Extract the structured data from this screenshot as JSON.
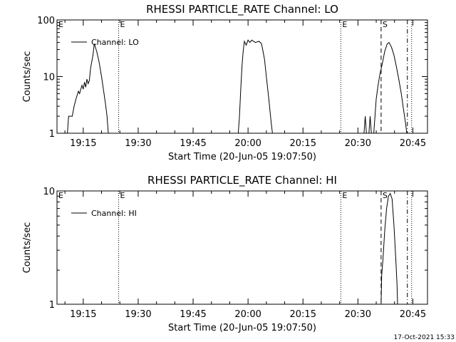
{
  "footer": {
    "date_stamp": "17-Oct-2021 15:33"
  },
  "chart_data": [
    {
      "type": "line",
      "title": "RHESSI PARTICLE_RATE Channel: LO",
      "xlabel": "Start Time (20-Jun-05 19:07:50)",
      "ylabel": "Counts/sec",
      "y_scale": "log",
      "ylim": [
        1,
        100
      ],
      "xlim": [
        "19:07:50",
        "20:49:00"
      ],
      "y_ticks": [
        {
          "label": "1",
          "value": 1
        },
        {
          "label": "10",
          "value": 10
        },
        {
          "label": "100",
          "value": 100
        }
      ],
      "x_ticks": [
        "19:15",
        "19:30",
        "19:45",
        "20:00",
        "20:15",
        "20:30",
        "20:45"
      ],
      "legend": {
        "label": "Channel: LO",
        "placement": "top-left"
      },
      "markers": [
        {
          "time": "19:24:40",
          "style": "dotted",
          "label": "E"
        },
        {
          "time": "20:25:20",
          "style": "dotted",
          "label": "E"
        },
        {
          "time": "20:36:20",
          "style": "dashed",
          "label": "S"
        },
        {
          "time": "20:43:30",
          "style": "dash-dot",
          "label": ""
        },
        {
          "time": "20:44:40",
          "style": "dotted",
          "label": ""
        }
      ],
      "series": [
        {
          "segments": [
            [
              {
                "t": "19:10:40",
                "v": 1
              },
              {
                "t": "19:11:00",
                "v": 2
              },
              {
                "t": "19:12:00",
                "v": 2
              },
              {
                "t": "19:12:30",
                "v": 3
              },
              {
                "t": "19:13:00",
                "v": 4
              },
              {
                "t": "19:13:40",
                "v": 5.5
              },
              {
                "t": "19:14:00",
                "v": 5
              },
              {
                "t": "19:14:20",
                "v": 6
              },
              {
                "t": "19:14:40",
                "v": 7
              },
              {
                "t": "19:15:00",
                "v": 6
              },
              {
                "t": "19:15:20",
                "v": 8
              },
              {
                "t": "19:15:40",
                "v": 6.5
              },
              {
                "t": "19:16:00",
                "v": 9
              },
              {
                "t": "19:16:20",
                "v": 7.5
              },
              {
                "t": "19:16:40",
                "v": 8.5
              },
              {
                "t": "19:17:00",
                "v": 14
              },
              {
                "t": "19:17:40",
                "v": 24
              },
              {
                "t": "19:18:00",
                "v": 38
              },
              {
                "t": "19:18:40",
                "v": 28
              },
              {
                "t": "19:19:20",
                "v": 18
              },
              {
                "t": "19:20:00",
                "v": 10
              },
              {
                "t": "19:20:40",
                "v": 5
              },
              {
                "t": "19:21:10",
                "v": 3
              },
              {
                "t": "19:21:30",
                "v": 2
              },
              {
                "t": "19:21:50",
                "v": 1
              }
            ],
            [
              {
                "t": "19:57:20",
                "v": 1
              },
              {
                "t": "19:57:40",
                "v": 2
              },
              {
                "t": "19:58:00",
                "v": 6
              },
              {
                "t": "19:58:20",
                "v": 15
              },
              {
                "t": "19:58:40",
                "v": 28
              },
              {
                "t": "19:59:00",
                "v": 42
              },
              {
                "t": "19:59:30",
                "v": 36
              },
              {
                "t": "20:00:00",
                "v": 44
              },
              {
                "t": "20:00:30",
                "v": 40
              },
              {
                "t": "20:01:00",
                "v": 44
              },
              {
                "t": "20:02:00",
                "v": 40
              },
              {
                "t": "20:03:00",
                "v": 42
              },
              {
                "t": "20:03:40",
                "v": 38
              },
              {
                "t": "20:04:00",
                "v": 30
              },
              {
                "t": "20:04:30",
                "v": 20
              },
              {
                "t": "20:05:00",
                "v": 10
              },
              {
                "t": "20:05:40",
                "v": 4
              },
              {
                "t": "20:06:20",
                "v": 1.5
              },
              {
                "t": "20:06:40",
                "v": 1
              }
            ],
            [
              {
                "t": "20:31:40",
                "v": 1
              },
              {
                "t": "20:32:00",
                "v": 2
              },
              {
                "t": "20:32:20",
                "v": 1
              },
              {
                "t": "20:33:00",
                "v": 1
              },
              {
                "t": "20:33:20",
                "v": 2
              },
              {
                "t": "20:33:40",
                "v": 1
              },
              {
                "t": "20:34:20",
                "v": 1
              },
              {
                "t": "20:34:40",
                "v": 2
              },
              {
                "t": "20:35:00",
                "v": 4
              },
              {
                "t": "20:35:30",
                "v": 7
              },
              {
                "t": "20:36:00",
                "v": 11
              },
              {
                "t": "20:36:40",
                "v": 17
              },
              {
                "t": "20:37:20",
                "v": 28
              },
              {
                "t": "20:38:00",
                "v": 38
              },
              {
                "t": "20:38:30",
                "v": 40
              },
              {
                "t": "20:39:10",
                "v": 33
              },
              {
                "t": "20:39:50",
                "v": 24
              },
              {
                "t": "20:40:30",
                "v": 15
              },
              {
                "t": "20:41:10",
                "v": 9
              },
              {
                "t": "20:41:50",
                "v": 5
              },
              {
                "t": "20:42:30",
                "v": 2.5
              },
              {
                "t": "20:43:00",
                "v": 1.5
              },
              {
                "t": "20:43:20",
                "v": 1
              }
            ]
          ]
        }
      ]
    },
    {
      "type": "line",
      "title": "RHESSI PARTICLE_RATE Channel: HI",
      "xlabel": "Start Time (20-Jun-05 19:07:50)",
      "ylabel": "Counts/sec",
      "y_scale": "log",
      "ylim": [
        1,
        10
      ],
      "xlim": [
        "19:07:50",
        "20:49:00"
      ],
      "y_ticks": [
        {
          "label": "1",
          "value": 1
        },
        {
          "label": "10",
          "value": 10
        }
      ],
      "x_ticks": [
        "19:15",
        "19:30",
        "19:45",
        "20:00",
        "20:15",
        "20:30",
        "20:45"
      ],
      "legend": {
        "label": "Channel: HI",
        "placement": "top-left"
      },
      "markers": [
        {
          "time": "19:24:40",
          "style": "dotted",
          "label": "E"
        },
        {
          "time": "20:25:20",
          "style": "dotted",
          "label": "E"
        },
        {
          "time": "20:36:20",
          "style": "dashed",
          "label": "S"
        },
        {
          "time": "20:43:30",
          "style": "dash-dot",
          "label": ""
        },
        {
          "time": "20:44:40",
          "style": "dotted",
          "label": ""
        }
      ],
      "series": [
        {
          "segments": [
            [
              {
                "t": "20:36:20",
                "v": 1
              },
              {
                "t": "20:36:30",
                "v": 1.8
              },
              {
                "t": "20:36:50",
                "v": 2.5
              },
              {
                "t": "20:37:20",
                "v": 4.5
              },
              {
                "t": "20:37:50",
                "v": 7
              },
              {
                "t": "20:38:20",
                "v": 9
              },
              {
                "t": "20:38:50",
                "v": 9.5
              },
              {
                "t": "20:39:20",
                "v": 8.5
              },
              {
                "t": "20:39:50",
                "v": 5
              },
              {
                "t": "20:40:20",
                "v": 2.5
              },
              {
                "t": "20:40:40",
                "v": 1.5
              },
              {
                "t": "20:40:50",
                "v": 1
              }
            ]
          ]
        }
      ]
    }
  ]
}
